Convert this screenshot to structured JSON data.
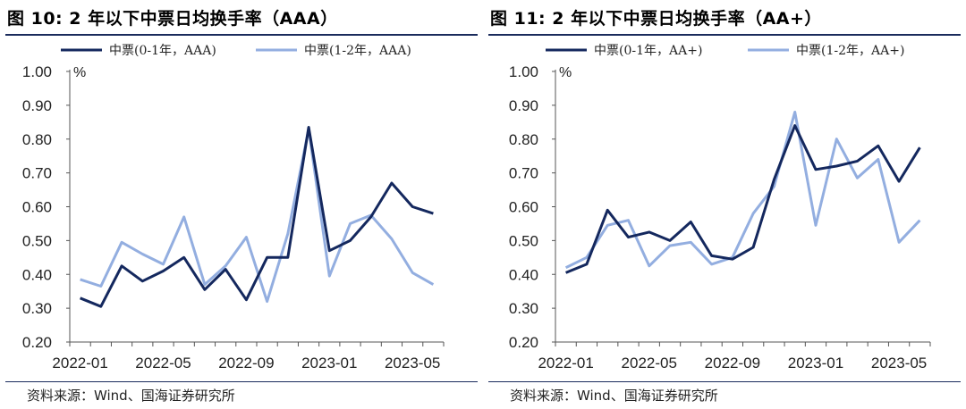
{
  "chart_data": [
    {
      "type": "line",
      "title": "图 10:  2 年以下中票日均换手率（AAA）",
      "unit": "%",
      "source": "资料来源：Wind、国海证券研究所",
      "x": [
        "2022-01",
        "2022-02",
        "2022-03",
        "2022-04",
        "2022-05",
        "2022-06",
        "2022-07",
        "2022-08",
        "2022-09",
        "2022-10",
        "2022-11",
        "2022-12",
        "2023-01",
        "2023-02",
        "2023-03",
        "2023-04",
        "2023-05",
        "2023-06"
      ],
      "xticks": [
        "2022-01",
        "2022-05",
        "2022-09",
        "2023-01",
        "2023-05"
      ],
      "yticks": [
        "0.20",
        "0.30",
        "0.40",
        "0.50",
        "0.60",
        "0.70",
        "0.80",
        "0.90",
        "1.00"
      ],
      "ylim": [
        0.2,
        1.0
      ],
      "grid": false,
      "legend_position": "top",
      "series": [
        {
          "name": "中票(0-1年，AAA)",
          "color": "#14285e",
          "values": [
            0.33,
            0.305,
            0.425,
            0.38,
            0.41,
            0.45,
            0.355,
            0.415,
            0.325,
            0.45,
            0.45,
            0.835,
            0.47,
            0.5,
            0.57,
            0.67,
            0.6,
            0.58
          ]
        },
        {
          "name": "中票(1-2年，AAA)",
          "color": "#93aee0",
          "values": [
            0.385,
            0.365,
            0.495,
            0.46,
            0.43,
            0.57,
            0.37,
            0.425,
            0.51,
            0.32,
            0.52,
            0.83,
            0.395,
            0.55,
            0.575,
            0.505,
            0.405,
            0.37
          ]
        }
      ]
    },
    {
      "type": "line",
      "title": "图 11:  2 年以下中票日均换手率（AA+）",
      "unit": "%",
      "source": "资料来源：Wind、国海证券研究所",
      "x": [
        "2022-01",
        "2022-02",
        "2022-03",
        "2022-04",
        "2022-05",
        "2022-06",
        "2022-07",
        "2022-08",
        "2022-09",
        "2022-10",
        "2022-11",
        "2022-12",
        "2023-01",
        "2023-02",
        "2023-03",
        "2023-04",
        "2023-05",
        "2023-06"
      ],
      "xticks": [
        "2022-01",
        "2022-05",
        "2022-09",
        "2023-01",
        "2023-05"
      ],
      "yticks": [
        "0.20",
        "0.30",
        "0.40",
        "0.50",
        "0.60",
        "0.70",
        "0.80",
        "0.90",
        "1.00"
      ],
      "ylim": [
        0.2,
        1.0
      ],
      "grid": false,
      "legend_position": "top",
      "series": [
        {
          "name": "中票(0-1年，AA+)",
          "color": "#14285e",
          "values": [
            0.405,
            0.43,
            0.59,
            0.51,
            0.525,
            0.5,
            0.555,
            0.455,
            0.445,
            0.48,
            0.68,
            0.84,
            0.71,
            0.72,
            0.735,
            0.78,
            0.675,
            0.775
          ]
        },
        {
          "name": "中票(1-2年，AA+)",
          "color": "#93aee0",
          "values": [
            0.42,
            0.45,
            0.545,
            0.56,
            0.425,
            0.485,
            0.495,
            0.43,
            0.45,
            0.58,
            0.66,
            0.88,
            0.545,
            0.8,
            0.685,
            0.74,
            0.495,
            0.56
          ]
        }
      ]
    }
  ]
}
